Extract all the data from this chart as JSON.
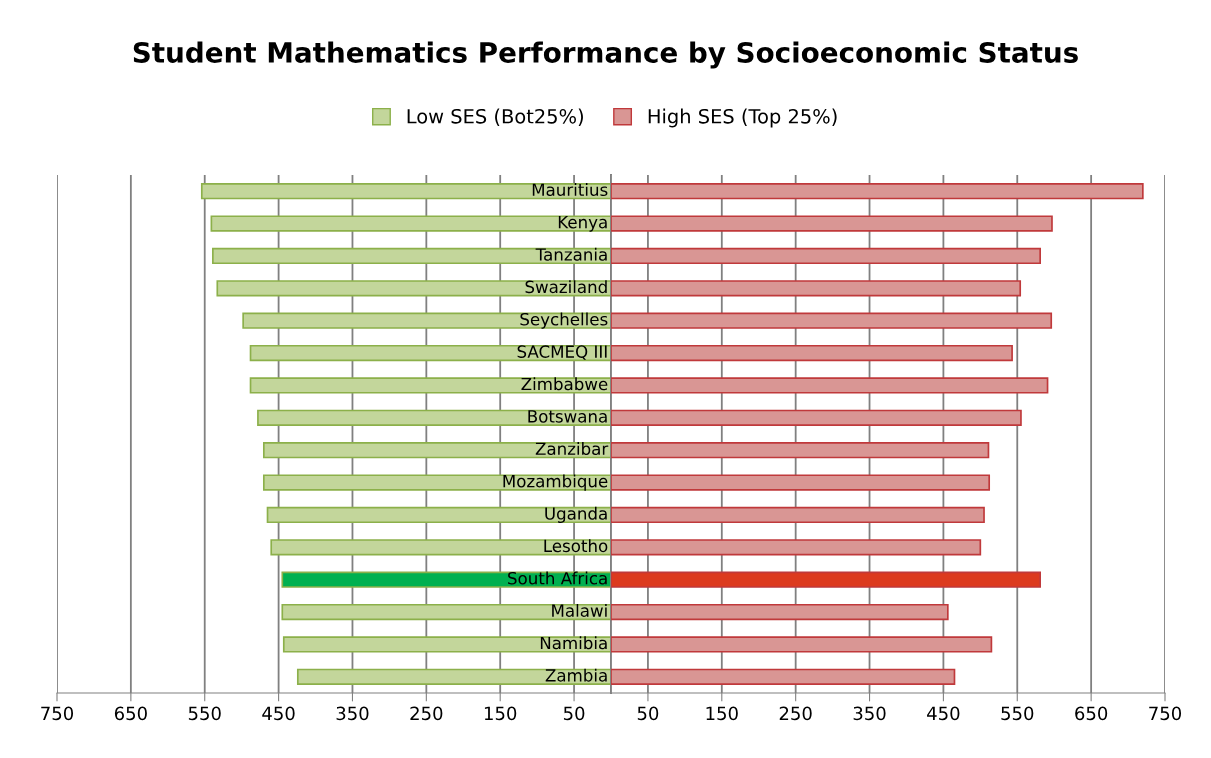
{
  "chart_data": [
    {
      "type": "bar",
      "orientation": "horizontal",
      "title": "Student Mathematics Performance by Socioeconomic Status",
      "categories": [
        "Mauritius",
        "Kenya",
        "Tanzania",
        "Swaziland",
        "Seychelles",
        "SACMEQ III",
        "Zimbabwe",
        "Botswana",
        "Zanzibar",
        "Mozambique",
        "Uganda",
        "Lesotho",
        "South Africa",
        "Malawi",
        "Namibia",
        "Zambia"
      ],
      "series": [
        {
          "name": "Low SES (Bot25%)",
          "color": "#c3d69b",
          "colors": [
            "#c3d69b",
            "#c3d69b",
            "#c3d69b",
            "#c3d69b",
            "#c3d69b",
            "#c3d69b",
            "#c3d69b",
            "#c3d69b",
            "#c3d69b",
            "#c3d69b",
            "#c3d69b",
            "#c3d69b",
            "#00b050",
            "#c3d69b",
            "#c3d69b",
            "#c3d69b"
          ],
          "values": [
            554,
            541,
            539,
            533,
            498,
            488,
            488,
            478,
            470,
            470,
            465,
            460,
            445,
            445,
            443,
            424
          ]
        }
      ],
      "xlim": [
        750,
        0
      ],
      "xticks": [
        750,
        650,
        550,
        450,
        350,
        250,
        150,
        50
      ],
      "grid": "x",
      "legend": "top"
    },
    {
      "type": "bar",
      "orientation": "horizontal",
      "categories": [
        null,
        null,
        null,
        null,
        null,
        null,
        null,
        null,
        null,
        null,
        null,
        null,
        null,
        null,
        null,
        null
      ],
      "series": [
        {
          "name": "High SES (Top 25%)",
          "color": "#d99694",
          "colors": [
            "#d99694",
            "#d99694",
            "#d99694",
            "#d99694",
            "#d99694",
            "#d99694",
            "#d99694",
            "#d99694",
            "#d99694",
            "#d99694",
            "#d99694",
            "#d99694",
            "#dc3a1e",
            "#d99694",
            "#d99694",
            "#d99694"
          ],
          "values": [
            720,
            597,
            581,
            554,
            596,
            543,
            591,
            555,
            511,
            512,
            505,
            500,
            581,
            456,
            515,
            465
          ]
        }
      ],
      "xlim": [
        0,
        750
      ],
      "xticks": [
        50,
        150,
        250,
        350,
        450,
        550,
        650,
        750
      ],
      "grid": "x",
      "legend": "top"
    }
  ]
}
